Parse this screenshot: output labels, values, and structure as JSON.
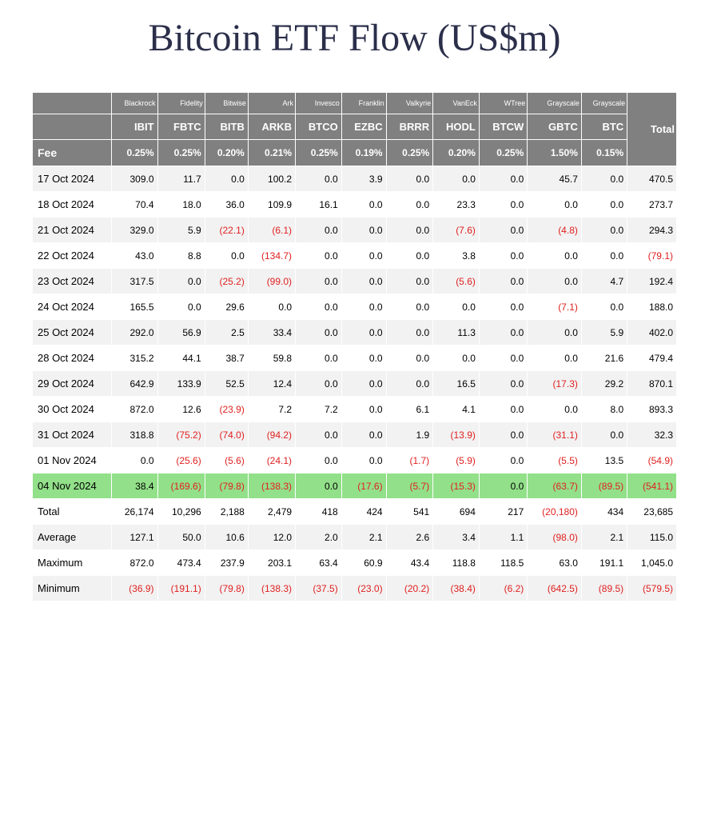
{
  "title": "Bitcoin ETF Flow (US$m)",
  "fee_label": "Fee",
  "total_label": "Total",
  "columns": [
    {
      "issuer": "Blackrock",
      "ticker": "IBIT",
      "fee": "0.25%"
    },
    {
      "issuer": "Fidelity",
      "ticker": "FBTC",
      "fee": "0.25%"
    },
    {
      "issuer": "Bitwise",
      "ticker": "BITB",
      "fee": "0.20%"
    },
    {
      "issuer": "Ark",
      "ticker": "ARKB",
      "fee": "0.21%"
    },
    {
      "issuer": "Invesco",
      "ticker": "BTCO",
      "fee": "0.25%"
    },
    {
      "issuer": "Franklin",
      "ticker": "EZBC",
      "fee": "0.19%"
    },
    {
      "issuer": "Valkyrie",
      "ticker": "BRRR",
      "fee": "0.25%"
    },
    {
      "issuer": "VanEck",
      "ticker": "HODL",
      "fee": "0.20%"
    },
    {
      "issuer": "WTree",
      "ticker": "BTCW",
      "fee": "0.25%"
    },
    {
      "issuer": "Grayscale",
      "ticker": "GBTC",
      "fee": "1.50%"
    },
    {
      "issuer": "Grayscale",
      "ticker": "BTC",
      "fee": "0.15%"
    }
  ],
  "rows": [
    {
      "date": "17 Oct 2024",
      "cells": [
        "309.0",
        "11.7",
        "0.0",
        "100.2",
        "0.0",
        "3.9",
        "0.0",
        "0.0",
        "0.0",
        "45.7",
        "0.0"
      ],
      "total": "470.5"
    },
    {
      "date": "18 Oct 2024",
      "cells": [
        "70.4",
        "18.0",
        "36.0",
        "109.9",
        "16.1",
        "0.0",
        "0.0",
        "23.3",
        "0.0",
        "0.0",
        "0.0"
      ],
      "total": "273.7"
    },
    {
      "date": "21 Oct 2024",
      "cells": [
        "329.0",
        "5.9",
        "(22.1)",
        "(6.1)",
        "0.0",
        "0.0",
        "0.0",
        "(7.6)",
        "0.0",
        "(4.8)",
        "0.0"
      ],
      "total": "294.3"
    },
    {
      "date": "22 Oct 2024",
      "cells": [
        "43.0",
        "8.8",
        "0.0",
        "(134.7)",
        "0.0",
        "0.0",
        "0.0",
        "3.8",
        "0.0",
        "0.0",
        "0.0"
      ],
      "total": "(79.1)"
    },
    {
      "date": "23 Oct 2024",
      "cells": [
        "317.5",
        "0.0",
        "(25.2)",
        "(99.0)",
        "0.0",
        "0.0",
        "0.0",
        "(5.6)",
        "0.0",
        "0.0",
        "4.7"
      ],
      "total": "192.4"
    },
    {
      "date": "24 Oct 2024",
      "cells": [
        "165.5",
        "0.0",
        "29.6",
        "0.0",
        "0.0",
        "0.0",
        "0.0",
        "0.0",
        "0.0",
        "(7.1)",
        "0.0"
      ],
      "total": "188.0"
    },
    {
      "date": "25 Oct 2024",
      "cells": [
        "292.0",
        "56.9",
        "2.5",
        "33.4",
        "0.0",
        "0.0",
        "0.0",
        "11.3",
        "0.0",
        "0.0",
        "5.9"
      ],
      "total": "402.0"
    },
    {
      "date": "28 Oct 2024",
      "cells": [
        "315.2",
        "44.1",
        "38.7",
        "59.8",
        "0.0",
        "0.0",
        "0.0",
        "0.0",
        "0.0",
        "0.0",
        "21.6"
      ],
      "total": "479.4"
    },
    {
      "date": "29 Oct 2024",
      "cells": [
        "642.9",
        "133.9",
        "52.5",
        "12.4",
        "0.0",
        "0.0",
        "0.0",
        "16.5",
        "0.0",
        "(17.3)",
        "29.2"
      ],
      "total": "870.1"
    },
    {
      "date": "30 Oct 2024",
      "cells": [
        "872.0",
        "12.6",
        "(23.9)",
        "7.2",
        "7.2",
        "0.0",
        "6.1",
        "4.1",
        "0.0",
        "0.0",
        "8.0"
      ],
      "total": "893.3"
    },
    {
      "date": "31 Oct 2024",
      "cells": [
        "318.8",
        "(75.2)",
        "(74.0)",
        "(94.2)",
        "0.0",
        "0.0",
        "1.9",
        "(13.9)",
        "0.0",
        "(31.1)",
        "0.0"
      ],
      "total": "32.3"
    },
    {
      "date": "01 Nov 2024",
      "cells": [
        "0.0",
        "(25.6)",
        "(5.6)",
        "(24.1)",
        "0.0",
        "0.0",
        "(1.7)",
        "(5.9)",
        "0.0",
        "(5.5)",
        "13.5"
      ],
      "total": "(54.9)"
    },
    {
      "date": "04 Nov 2024",
      "highlight": true,
      "cells": [
        "38.4",
        "(169.6)",
        "(79.8)",
        "(138.3)",
        "0.0",
        "(17.6)",
        "(5.7)",
        "(15.3)",
        "0.0",
        "(63.7)",
        "(89.5)"
      ],
      "total": "(541.1)"
    }
  ],
  "summary": [
    {
      "label": "Total",
      "cells": [
        "26,174",
        "10,296",
        "2,188",
        "2,479",
        "418",
        "424",
        "541",
        "694",
        "217",
        "(20,180)",
        "434"
      ],
      "total": "23,685"
    },
    {
      "label": "Average",
      "cells": [
        "127.1",
        "50.0",
        "10.6",
        "12.0",
        "2.0",
        "2.1",
        "2.6",
        "3.4",
        "1.1",
        "(98.0)",
        "2.1"
      ],
      "total": "115.0"
    },
    {
      "label": "Maximum",
      "cells": [
        "872.0",
        "473.4",
        "237.9",
        "203.1",
        "63.4",
        "60.9",
        "43.4",
        "118.8",
        "118.5",
        "63.0",
        "191.1"
      ],
      "total": "1,045.0"
    },
    {
      "label": "Minimum",
      "cells": [
        "(36.9)",
        "(191.1)",
        "(79.8)",
        "(138.3)",
        "(37.5)",
        "(23.0)",
        "(20.2)",
        "(38.4)",
        "(6.2)",
        "(642.5)",
        "(89.5)"
      ],
      "total": "(579.5)"
    }
  ],
  "colors": {
    "title": "#2b2f4a",
    "header_bg": "#808080",
    "header_text": "#ffffff",
    "row_odd": "#f2f2f2",
    "row_even": "#ffffff",
    "highlight": "#92e089",
    "negative": "#e02020",
    "positive": "#000000"
  }
}
